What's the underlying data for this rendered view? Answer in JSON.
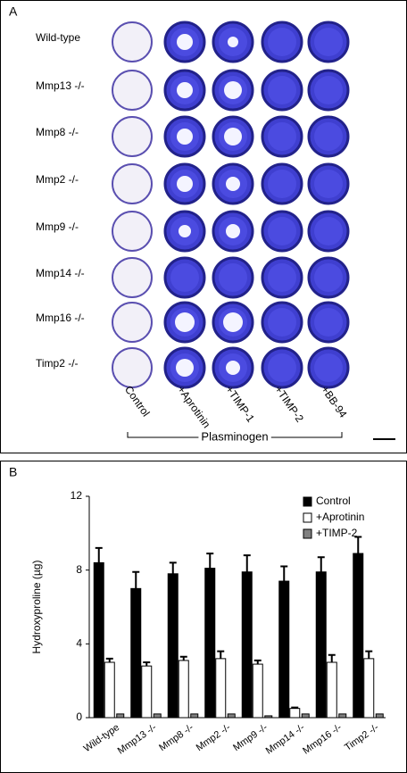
{
  "panel_a": {
    "label": "A",
    "genotypes": [
      "Wild-type",
      "Mmp13 -/-",
      "Mmp8 -/-",
      "Mmp2 -/-",
      "Mmp9 -/-",
      "Mmp14 -/-",
      "Mmp16 -/-",
      "Timp2 -/-"
    ],
    "treatments": [
      "Control",
      "+Aprotinin",
      "+TIMP-1",
      "+TIMP-2",
      "+BB-94"
    ],
    "bracket_label": "Plasminogen"
  },
  "chart_data": {
    "type": "bar",
    "panel_label": "B",
    "ylabel": "Hydroxyproline (µg)",
    "categories": [
      "Wild-type",
      "Mmp13 -/-",
      "Mmp8 -/-",
      "Mmp2 -/-",
      "Mmp9 -/-",
      "Mmp14 -/-",
      "Mmp16 -/-",
      "Timp2 -/-"
    ],
    "series": [
      {
        "name": "Control",
        "color": "#000000",
        "values": [
          8.4,
          7.0,
          7.8,
          8.1,
          7.9,
          7.4,
          7.9,
          8.9
        ],
        "errors": [
          0.8,
          0.9,
          0.6,
          0.8,
          0.9,
          0.8,
          0.8,
          0.9
        ]
      },
      {
        "name": "+Aprotinin",
        "color": "#ffffff",
        "values": [
          3.0,
          2.8,
          3.1,
          3.2,
          2.9,
          0.5,
          3.0,
          3.2
        ],
        "errors": [
          0.2,
          0.2,
          0.2,
          0.4,
          0.2,
          0.05,
          0.4,
          0.4
        ]
      },
      {
        "name": "+TIMP-2",
        "color": "#808080",
        "values": [
          0.2,
          0.2,
          0.2,
          0.2,
          0.1,
          0.2,
          0.2,
          0.2
        ]
      }
    ],
    "ylim": [
      0,
      12
    ],
    "yticks": [
      0,
      4,
      8,
      12
    ],
    "legend": "upper right"
  }
}
